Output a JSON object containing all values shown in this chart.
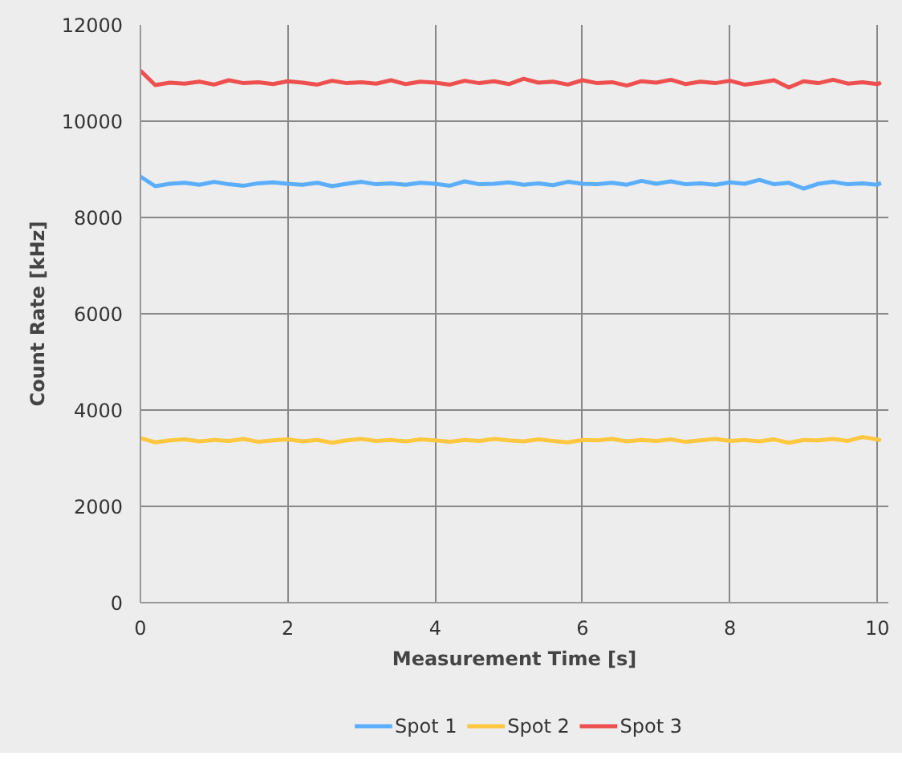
{
  "chart_data": {
    "type": "line",
    "xlabel": "Measurement Time [s]",
    "ylabel": "Count Rate [kHz]",
    "x": [
      0,
      0.2,
      0.4,
      0.6,
      0.8,
      1.0,
      1.2,
      1.4,
      1.6,
      1.8,
      2.0,
      2.2,
      2.4,
      2.6,
      2.8,
      3.0,
      3.2,
      3.4,
      3.6,
      3.8,
      4.0,
      4.2,
      4.4,
      4.6,
      4.8,
      5.0,
      5.2,
      5.4,
      5.6,
      5.8,
      6.0,
      6.2,
      6.4,
      6.6,
      6.8,
      7.0,
      7.2,
      7.4,
      7.6,
      7.8,
      8.0,
      8.2,
      8.4,
      8.6,
      8.8,
      9.0,
      9.2,
      9.4,
      9.6,
      9.8,
      10.0,
      10.05
    ],
    "series": [
      {
        "name": "Spot 1",
        "color": "#5aaefc",
        "values": [
          8850,
          8650,
          8700,
          8720,
          8680,
          8740,
          8690,
          8660,
          8710,
          8730,
          8700,
          8680,
          8720,
          8650,
          8700,
          8740,
          8690,
          8710,
          8680,
          8720,
          8700,
          8660,
          8750,
          8690,
          8700,
          8730,
          8680,
          8710,
          8670,
          8740,
          8700,
          8690,
          8720,
          8680,
          8760,
          8700,
          8750,
          8690,
          8710,
          8680,
          8730,
          8700,
          8780,
          8690,
          8720,
          8600,
          8700,
          8740,
          8690,
          8710,
          8680,
          8720
        ]
      },
      {
        "name": "Spot 2",
        "color": "#fdc73f",
        "values": [
          3420,
          3330,
          3370,
          3390,
          3350,
          3380,
          3360,
          3400,
          3340,
          3370,
          3390,
          3350,
          3380,
          3320,
          3370,
          3400,
          3360,
          3380,
          3350,
          3390,
          3370,
          3340,
          3380,
          3360,
          3400,
          3370,
          3350,
          3390,
          3360,
          3330,
          3380,
          3370,
          3400,
          3350,
          3380,
          3360,
          3390,
          3340,
          3370,
          3400,
          3360,
          3380,
          3350,
          3390,
          3320,
          3380,
          3370,
          3400,
          3360,
          3440,
          3390,
          3370
        ]
      },
      {
        "name": "Spot 3",
        "color": "#ee5050",
        "values": [
          11050,
          10750,
          10800,
          10780,
          10820,
          10760,
          10850,
          10790,
          10810,
          10770,
          10830,
          10800,
          10760,
          10840,
          10790,
          10810,
          10780,
          10850,
          10770,
          10820,
          10800,
          10760,
          10840,
          10790,
          10830,
          10770,
          10880,
          10800,
          10820,
          10760,
          10850,
          10790,
          10810,
          10740,
          10830,
          10800,
          10860,
          10770,
          10820,
          10790,
          10840,
          10760,
          10800,
          10850,
          10700,
          10830,
          10790,
          10860,
          10780,
          10810,
          10770,
          10800
        ]
      }
    ],
    "xlim": [
      0,
      10.15
    ],
    "ylim": [
      0,
      12000
    ],
    "xticks": [
      0,
      2,
      4,
      6,
      8,
      10
    ],
    "yticks": [
      0,
      2000,
      4000,
      6000,
      8000,
      10000,
      12000
    ],
    "grid": true,
    "legend": "bottom",
    "line_style": "solid",
    "marker": "none"
  }
}
